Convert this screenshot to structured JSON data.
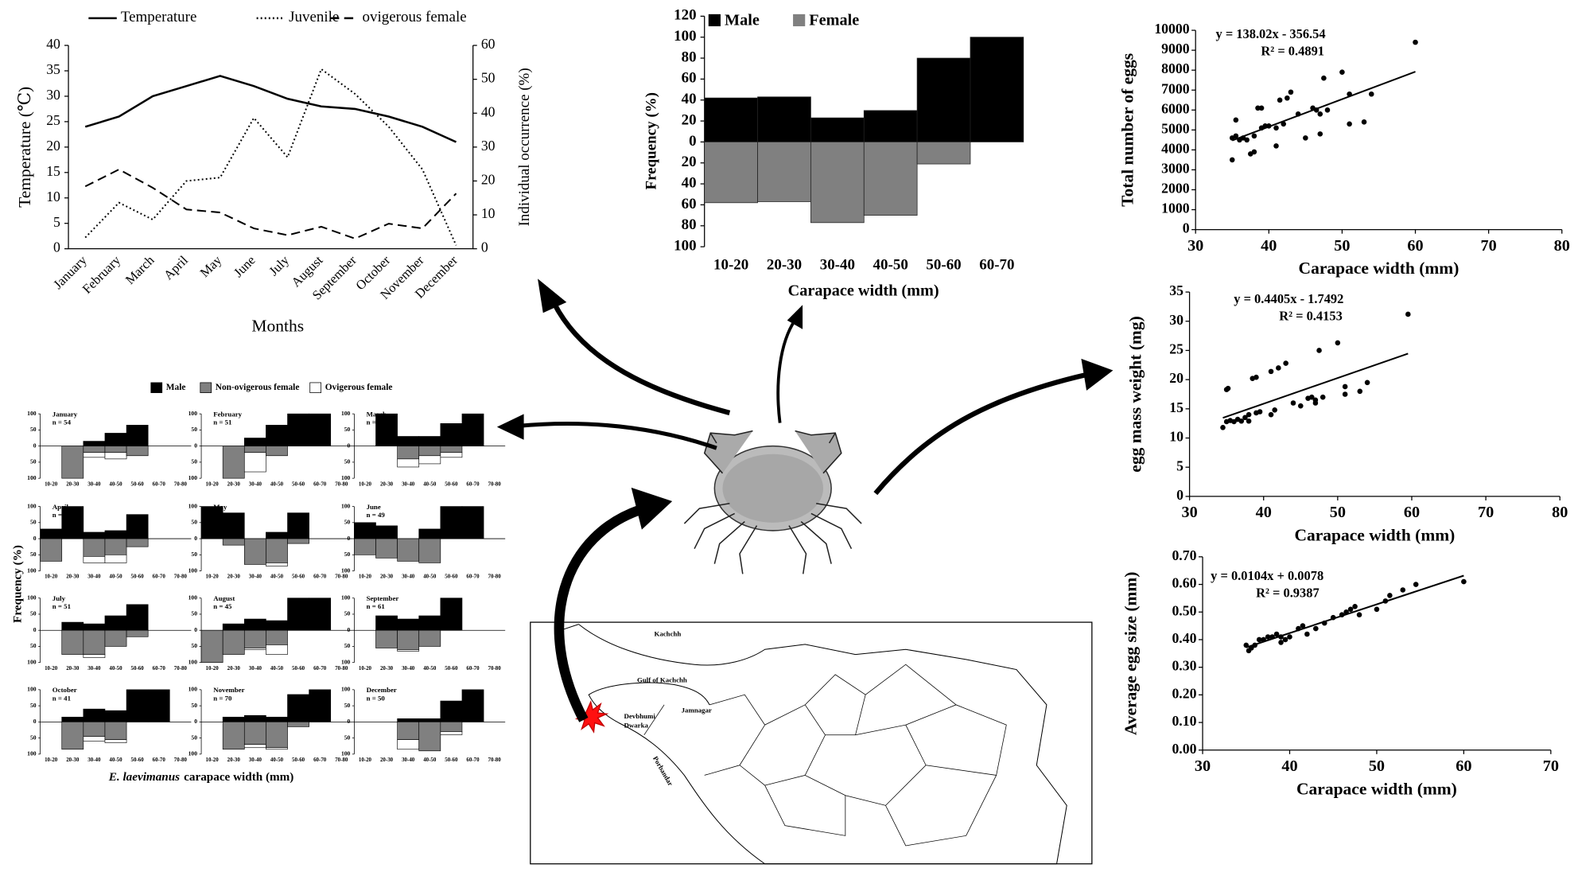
{
  "chart_data": [
    {
      "type": "line",
      "ylabel": "Temperature (℃)",
      "y2label": "Individual occurrence (%)",
      "xlabel": "Months",
      "categories": [
        "January",
        "February",
        "March",
        "April",
        "May",
        "June",
        "July",
        "August",
        "September",
        "October",
        "November",
        "December"
      ],
      "ylim": [
        0,
        40
      ],
      "yticks": [
        0,
        5,
        10,
        15,
        20,
        25,
        30,
        35,
        40
      ],
      "y2lim": [
        0,
        60
      ],
      "y2ticks": [
        0,
        10,
        20,
        30,
        40,
        50,
        60
      ],
      "series": [
        {
          "name": "Temperature",
          "color": "#000000",
          "dash": "solid",
          "values": [
            24,
            26,
            30,
            32,
            34,
            32,
            29.5,
            28,
            27.5,
            26,
            24,
            21
          ]
        },
        {
          "name": "Juvenile",
          "color": "#000000",
          "dash": "dotted",
          "axis": "y2",
          "values": [
            3.3,
            13.6,
            8.6,
            20,
            21,
            38.6,
            27,
            53,
            45.7,
            36,
            23.4,
            1
          ]
        },
        {
          "name": "ovigerous female",
          "color": "#000000",
          "dash": "dashed",
          "axis": "y2",
          "values": [
            18.4,
            23.4,
            18,
            11.6,
            10.7,
            6,
            4,
            6.5,
            3,
            7.4,
            6,
            16.3
          ]
        }
      ]
    },
    {
      "type": "bar",
      "ylabel": "Frequency (%)",
      "xlabel": "Carapace width (mm)",
      "categories": [
        "10-20",
        "20-30",
        "30-40",
        "40-50",
        "50-60",
        "60-70"
      ],
      "ylim": [
        -100,
        120
      ],
      "yticks": [
        120,
        100,
        80,
        60,
        40,
        20,
        0,
        {
          "value": -20,
          "label": "20"
        },
        {
          "value": -40,
          "label": "40"
        },
        {
          "value": -60,
          "label": "60"
        },
        {
          "value": -80,
          "label": "80"
        },
        {
          "value": -100,
          "label": "100"
        }
      ],
      "series": [
        {
          "name": "Male",
          "color": "#000000",
          "values": [
            42,
            43,
            23,
            30,
            80,
            100
          ]
        },
        {
          "name": "Female",
          "color": "#808080",
          "values": [
            -58,
            -57,
            -77,
            -70,
            -21,
            0
          ]
        }
      ]
    },
    {
      "type": "scatter",
      "xlabel": "Carapace width (mm)",
      "ylabel": "Total number of eggs",
      "equation": "y = 138.02x - 356.54",
      "r2": "R² = 0.4891",
      "xlim": [
        30,
        80
      ],
      "xticks": [
        30,
        40,
        50,
        60,
        70,
        80
      ],
      "ylim": [
        0,
        10000
      ],
      "yticks": [
        0,
        1000,
        2000,
        3000,
        4000,
        5000,
        6000,
        7000,
        8000,
        9000,
        10000
      ],
      "x": [
        35,
        35,
        35.5,
        35.5,
        36,
        36.5,
        37,
        37.5,
        38,
        38,
        38.5,
        39,
        39,
        39.5,
        40,
        41,
        41,
        41.5,
        42,
        42.5,
        43,
        44,
        45,
        46,
        46.5,
        47,
        47,
        47.5,
        48,
        50,
        51,
        51,
        53,
        54,
        60
      ],
      "y": [
        3500,
        4600,
        5500,
        4700,
        4500,
        4600,
        4500,
        3800,
        3900,
        4700,
        6100,
        6100,
        5100,
        5200,
        5200,
        4200,
        5100,
        6500,
        5300,
        6600,
        6900,
        5800,
        4600,
        6100,
        6000,
        4800,
        5800,
        7600,
        6000,
        7900,
        6800,
        5300,
        5400,
        6800,
        9400
      ],
      "color": "#000000",
      "trendline": {
        "slope": 138.02,
        "intercept": -356.54,
        "x": [
          35,
          60
        ]
      }
    },
    {
      "type": "scatter",
      "xlabel": "Carapace width (mm)",
      "ylabel": "egg mass weight (mg)",
      "equation": "y = 0.4405x - 1.7492",
      "r2": "R² = 0.4153",
      "xlim": [
        30,
        80
      ],
      "xticks": [
        30,
        40,
        50,
        60,
        70,
        80
      ],
      "ylim": [
        0,
        35
      ],
      "yticks": [
        0,
        5,
        10,
        15,
        20,
        25,
        30,
        35
      ],
      "x": [
        34.5,
        35,
        35.2,
        35,
        35.5,
        36,
        36.5,
        37,
        37.5,
        38,
        38,
        38.5,
        39,
        39,
        39.5,
        41,
        41,
        41.5,
        42,
        43,
        44,
        45,
        46,
        46.5,
        47,
        47,
        47.5,
        48,
        50,
        51,
        51,
        53,
        54,
        59.5
      ],
      "y": [
        11.8,
        18.3,
        18.5,
        12.8,
        13,
        12.8,
        13.2,
        12.9,
        13.5,
        12.9,
        14,
        20.2,
        20.4,
        14.3,
        14.5,
        21.4,
        14,
        14.8,
        22,
        22.8,
        16,
        15.5,
        16.8,
        17,
        16.5,
        16,
        25,
        17,
        26.3,
        18.8,
        17.5,
        18,
        19.5,
        31.2
      ],
      "color": "#000000",
      "trendline": {
        "slope": 0.4405,
        "intercept": -1.7492,
        "x": [
          34.5,
          59.5
        ]
      }
    },
    {
      "type": "scatter",
      "xlabel": "Carapace width (mm)",
      "ylabel": "Average egg size (mm)",
      "equation": "y = 0.0104x + 0.0078",
      "r2": "R² = 0.9387",
      "xlim": [
        30,
        70
      ],
      "xticks": [
        30,
        40,
        50,
        60,
        70
      ],
      "ylim": [
        0,
        0.7
      ],
      "yticks": [
        {
          "value": 0,
          "label": "0.00"
        },
        {
          "value": 0.1,
          "label": "0.10"
        },
        {
          "value": 0.2,
          "label": "0.20"
        },
        {
          "value": 0.3,
          "label": "0.30"
        },
        {
          "value": 0.4,
          "label": "0.40"
        },
        {
          "value": 0.5,
          "label": "0.50"
        },
        {
          "value": 0.6,
          "label": "0.60"
        },
        {
          "value": 0.7,
          "label": "0.70"
        }
      ],
      "x": [
        35,
        35.3,
        35.6,
        36,
        36.5,
        37,
        37.5,
        38,
        38.5,
        39,
        39,
        39.5,
        40,
        41,
        41.5,
        42,
        43,
        44,
        45,
        46,
        46.5,
        47,
        47.5,
        48,
        50,
        51,
        51.5,
        53,
        54.5,
        60
      ],
      "y": [
        0.38,
        0.36,
        0.37,
        0.38,
        0.4,
        0.4,
        0.41,
        0.41,
        0.42,
        0.41,
        0.39,
        0.4,
        0.41,
        0.44,
        0.45,
        0.42,
        0.44,
        0.46,
        0.48,
        0.49,
        0.5,
        0.51,
        0.52,
        0.49,
        0.51,
        0.54,
        0.56,
        0.58,
        0.6,
        0.61
      ],
      "color": "#000000",
      "trendline": {
        "slope": 0.0104,
        "intercept": 0.0078,
        "x": [
          35,
          60
        ]
      }
    },
    {
      "type": "bar-panels",
      "ylabel": "Frequency (%)",
      "xlabel_species": "E. laevimanus",
      "xlabel": "carapace width (mm)",
      "categories": [
        "10-20",
        "20-30",
        "30-40",
        "40-50",
        "50-60",
        "60-70",
        "70-80"
      ],
      "ylim": [
        -100,
        100
      ],
      "yticks": [
        100,
        50,
        0,
        {
          "value": -50,
          "label": "50"
        },
        {
          "value": -100,
          "label": "100"
        }
      ],
      "series": [
        {
          "name": "Male",
          "color": "#000000"
        },
        {
          "name": "Non-ovigerous female",
          "color": "#808080"
        },
        {
          "name": "Ovigerous female",
          "color": "#ffffff"
        }
      ],
      "panels": [
        {
          "title": "January",
          "subtitle": "n = 54",
          "values": [
            [
              0,
              0,
              15,
              40,
              65,
              0,
              0
            ],
            [
              0,
              -100,
              -20,
              -20,
              -30,
              0,
              0
            ],
            [
              0,
              0,
              -15,
              -20,
              0,
              0,
              0
            ]
          ]
        },
        {
          "title": "February",
          "subtitle": "n = 51",
          "values": [
            [
              0,
              0,
              25,
              65,
              100,
              100,
              0
            ],
            [
              0,
              -100,
              -20,
              -30,
              0,
              0,
              0
            ],
            [
              0,
              0,
              -60,
              0,
              0,
              0,
              0
            ]
          ]
        },
        {
          "title": "March",
          "subtitle": "n = 73",
          "values": [
            [
              0,
              100,
              30,
              30,
              70,
              100,
              0
            ],
            [
              0,
              0,
              -40,
              -30,
              -20,
              0,
              0
            ],
            [
              0,
              0,
              -25,
              -25,
              -15,
              0,
              0
            ]
          ]
        },
        {
          "title": "April",
          "subtitle": "n = 54",
          "values": [
            [
              30,
              100,
              20,
              25,
              75,
              0,
              0
            ],
            [
              -70,
              0,
              -55,
              -50,
              -25,
              0,
              0
            ],
            [
              0,
              0,
              -20,
              -25,
              0,
              0,
              0
            ]
          ]
        },
        {
          "title": "May",
          "subtitle": "n = 56",
          "values": [
            [
              100,
              80,
              0,
              20,
              80,
              0,
              0
            ],
            [
              0,
              -20,
              -80,
              -75,
              -15,
              0,
              0
            ],
            [
              0,
              0,
              0,
              -10,
              0,
              0,
              0
            ]
          ]
        },
        {
          "title": "June",
          "subtitle": "n = 49",
          "values": [
            [
              50,
              40,
              0,
              30,
              100,
              100,
              0
            ],
            [
              -50,
              -60,
              -70,
              -75,
              0,
              0,
              0
            ],
            [
              0,
              0,
              0,
              0,
              0,
              0,
              0
            ]
          ]
        },
        {
          "title": "July",
          "subtitle": "n = 51",
          "values": [
            [
              0,
              25,
              20,
              45,
              80,
              0,
              0
            ],
            [
              0,
              -75,
              -75,
              -50,
              -20,
              0,
              0
            ],
            [
              0,
              0,
              -10,
              0,
              0,
              0,
              0
            ]
          ]
        },
        {
          "title": "August",
          "subtitle": "n = 45",
          "values": [
            [
              0,
              20,
              35,
              30,
              100,
              100,
              0
            ],
            [
              -100,
              -75,
              -55,
              -45,
              0,
              0,
              0
            ],
            [
              0,
              0,
              -5,
              -30,
              0,
              0,
              0
            ]
          ]
        },
        {
          "title": "September",
          "subtitle": "n = 61",
          "values": [
            [
              0,
              45,
              35,
              45,
              100,
              0,
              0
            ],
            [
              0,
              -55,
              -60,
              -50,
              0,
              0,
              0
            ],
            [
              0,
              0,
              -5,
              0,
              0,
              0,
              0
            ]
          ]
        },
        {
          "title": "October",
          "subtitle": "n = 41",
          "values": [
            [
              0,
              15,
              40,
              35,
              100,
              100,
              0
            ],
            [
              0,
              -85,
              -45,
              -55,
              0,
              0,
              0
            ],
            [
              0,
              0,
              -15,
              -10,
              0,
              0,
              0
            ]
          ]
        },
        {
          "title": "November",
          "subtitle": "n = 70",
          "values": [
            [
              0,
              15,
              20,
              15,
              85,
              100,
              0
            ],
            [
              0,
              -85,
              -70,
              -80,
              -15,
              0,
              0
            ],
            [
              0,
              0,
              -10,
              -5,
              0,
              0,
              0
            ]
          ]
        },
        {
          "title": "December",
          "subtitle": "n = 50",
          "values": [
            [
              0,
              0,
              10,
              10,
              65,
              100,
              0
            ],
            [
              0,
              0,
              -55,
              -90,
              -30,
              0,
              0
            ],
            [
              0,
              0,
              -30,
              0,
              -10,
              0,
              0
            ]
          ]
        }
      ]
    }
  ],
  "map": {
    "labels": [
      "Kachchh",
      "Gulf of Kachchh",
      "Jamnagar",
      "Devbhumi",
      "Dwarka",
      "Porbandar"
    ]
  }
}
